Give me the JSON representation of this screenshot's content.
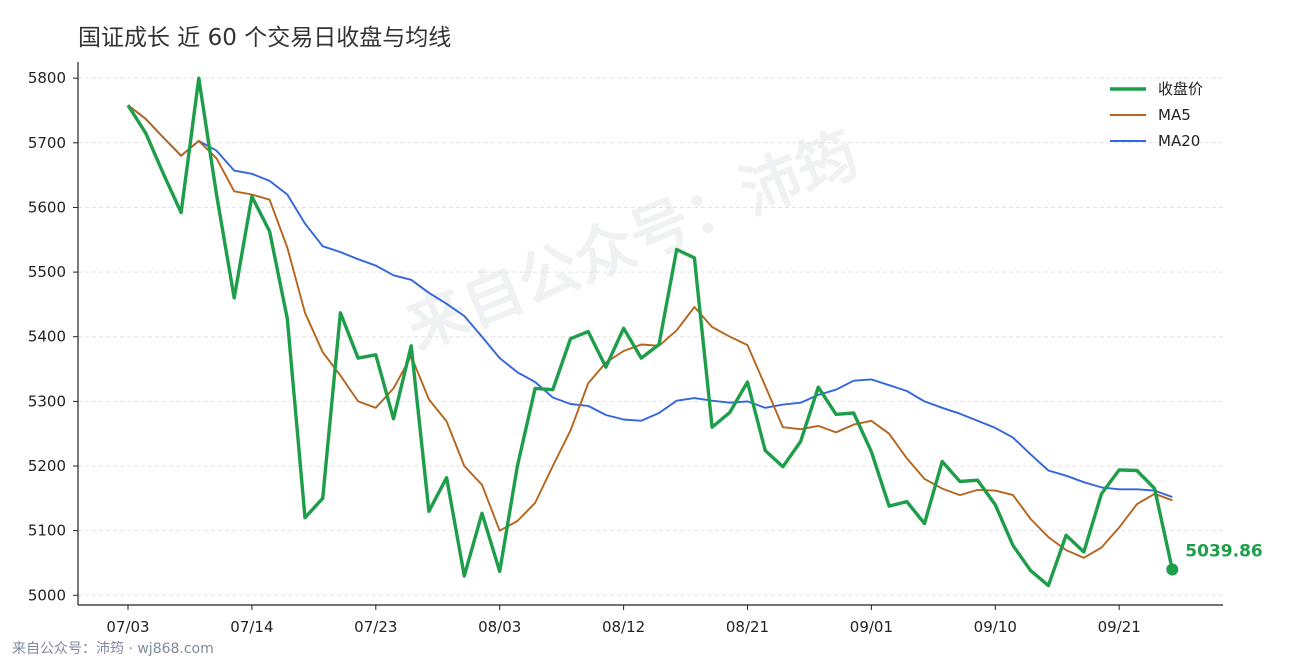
{
  "title": "国证成长 近 60 个交易日收盘与均线",
  "watermark": "来自公众号：沛筠",
  "footer": "来自公众号：沛筠 · wj868.com",
  "colors": {
    "close": "#1e9e4a",
    "ma5": "#b5651d",
    "ma20": "#3366dd",
    "grid": "#e2e2e2",
    "axis": "#222222"
  },
  "last_label": "5039.86",
  "chart_data": {
    "type": "line",
    "title": "国证成长 近 60 个交易日收盘与均线",
    "xlabel": "",
    "ylabel": "",
    "ylim": [
      4985,
      5825
    ],
    "yticks": [
      5000,
      5100,
      5200,
      5300,
      5400,
      5500,
      5600,
      5700,
      5800
    ],
    "x_tick_labels": [
      "07/03",
      "07/14",
      "07/23",
      "08/03",
      "08/12",
      "08/21",
      "09/01",
      "09/10",
      "09/21"
    ],
    "x_tick_index": [
      0,
      7,
      14,
      21,
      28,
      35,
      42,
      49,
      56
    ],
    "grid": "y-dashed",
    "legend_position": "top-right",
    "series": [
      {
        "name": "收盘价",
        "key": "close",
        "values": [
          5758,
          5715,
          5652,
          5592,
          5800,
          5620,
          5460,
          5617,
          5563,
          5428,
          5120,
          5150,
          5437,
          5367,
          5372,
          5273,
          5386,
          5130,
          5182,
          5030,
          5127,
          5037,
          5200,
          5320,
          5318,
          5397,
          5408,
          5353,
          5413,
          5367,
          5388,
          5535,
          5522,
          5260,
          5283,
          5330,
          5224,
          5199,
          5238,
          5322,
          5280,
          5282,
          5222,
          5138,
          5145,
          5111,
          5207,
          5176,
          5178,
          5140,
          5077,
          5038,
          5015,
          5093,
          5067,
          5157,
          5194,
          5193,
          5165,
          5039.86
        ]
      },
      {
        "name": "MA5",
        "key": "ma5",
        "values": [
          5758,
          5737,
          5708,
          5680,
          5703,
          5676,
          5625,
          5620,
          5612,
          5538,
          5437,
          5376,
          5340,
          5300,
          5290,
          5320,
          5370,
          5303,
          5269,
          5200,
          5171,
          5100,
          5115,
          5143,
          5200,
          5255,
          5328,
          5360,
          5378,
          5388,
          5386,
          5410,
          5446,
          5415,
          5400,
          5387,
          5324,
          5260,
          5257,
          5262,
          5252,
          5264,
          5270,
          5250,
          5212,
          5180,
          5165,
          5155,
          5163,
          5162,
          5155,
          5118,
          5090,
          5070,
          5058,
          5074,
          5105,
          5141,
          5157,
          5147
        ]
      },
      {
        "name": "MA20",
        "key": "ma20",
        "values": [
          5758,
          5737,
          5708,
          5680,
          5703,
          5688,
          5657,
          5652,
          5641,
          5620,
          5575,
          5540,
          5531,
          5520,
          5510,
          5495,
          5488,
          5468,
          5451,
          5432,
          5400,
          5367,
          5345,
          5330,
          5306,
          5296,
          5293,
          5279,
          5272,
          5270,
          5282,
          5301,
          5305,
          5301,
          5298,
          5300,
          5290,
          5295,
          5298,
          5310,
          5318,
          5332,
          5334,
          5325,
          5316,
          5300,
          5290,
          5281,
          5270,
          5259,
          5244,
          5218,
          5193,
          5185,
          5175,
          5167,
          5164,
          5164,
          5162,
          5152
        ]
      }
    ]
  }
}
